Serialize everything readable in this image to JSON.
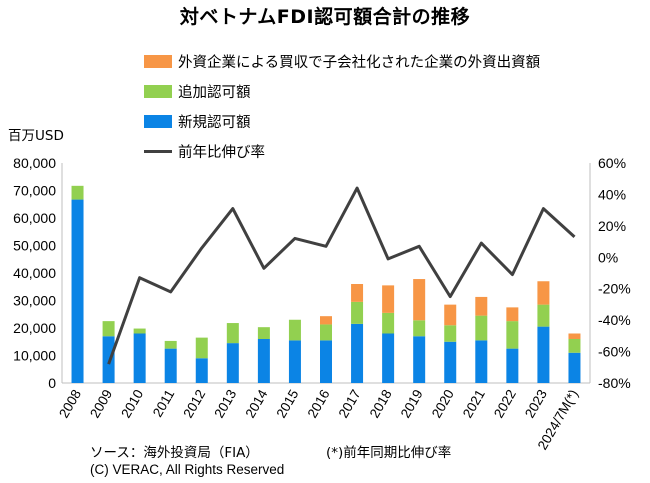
{
  "title": "対ベトナムFDI認可額合計の推移",
  "unit_label": "百万USD",
  "source_text": "ソース：海外投資局（FIA）",
  "footnote_text": "(*)前年同期比伸び率",
  "copyright_text": "(C) VERAC, All Rights Reserved",
  "legend": [
    {
      "label": "外資企業による買収で子会社化された企業の外資出資額",
      "color": "#f79646",
      "kind": "bar"
    },
    {
      "label": "追加認可額",
      "color": "#92d050",
      "kind": "bar"
    },
    {
      "label": "新規認可額",
      "color": "#0b84e5",
      "kind": "bar"
    },
    {
      "label": "前年比伸び率",
      "color": "#404040",
      "kind": "line"
    }
  ],
  "chart_data": {
    "type": "bar",
    "stacked": true,
    "categories": [
      "2008",
      "2009",
      "2010",
      "2011",
      "2012",
      "2013",
      "2014",
      "2015",
      "2016",
      "2017",
      "2018",
      "2019",
      "2020",
      "2021",
      "2022",
      "2023",
      "2024/7M(*)"
    ],
    "series": [
      {
        "name": "新規認可額",
        "color": "#0b84e5",
        "values": [
          66700,
          17000,
          18000,
          12500,
          9000,
          14500,
          16000,
          15500,
          15500,
          21500,
          18000,
          17000,
          15000,
          15500,
          12500,
          20500,
          11000
        ]
      },
      {
        "name": "追加認可額",
        "color": "#92d050",
        "values": [
          5000,
          5500,
          1800,
          2800,
          7500,
          7300,
          4300,
          7500,
          5800,
          8000,
          7500,
          5800,
          6000,
          9000,
          10000,
          8000,
          5000
        ]
      },
      {
        "name": "外資企業による買収で子会社化された企業の外資出資額",
        "color": "#f79646",
        "values": [
          0,
          0,
          0,
          0,
          0,
          0,
          0,
          0,
          3000,
          6500,
          10000,
          15000,
          7500,
          6800,
          5000,
          8500,
          2000
        ]
      }
    ],
    "line_series": {
      "name": "前年比伸び率",
      "color": "#404040",
      "axis": "right",
      "values": [
        null,
        -68,
        -13,
        -22,
        6,
        31,
        -7,
        12,
        7,
        44,
        -1,
        7,
        -25,
        9,
        -11,
        31,
        13
      ]
    },
    "y_left": {
      "min": 0,
      "max": 80000,
      "ticks": [
        "0",
        "10,000",
        "20,000",
        "30,000",
        "40,000",
        "50,000",
        "60,000",
        "70,000",
        "80,000"
      ]
    },
    "y_right": {
      "min": -80,
      "max": 60,
      "ticks": [
        "-80%",
        "-60%",
        "-40%",
        "-20%",
        "0%",
        "20%",
        "40%",
        "60%"
      ]
    },
    "grid": false
  }
}
